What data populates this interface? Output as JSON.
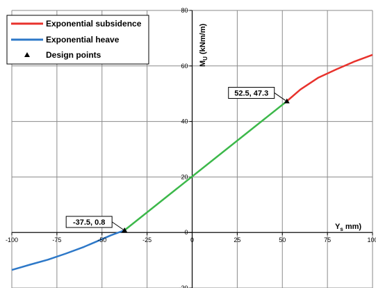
{
  "chart_data": {
    "type": "line",
    "xlim": [
      -100,
      100
    ],
    "ylim": [
      -20,
      80
    ],
    "x_ticks": [
      "-100",
      "-75",
      "-50",
      "-25",
      "0",
      "25",
      "50",
      "75",
      "100"
    ],
    "y_ticks": [
      "-20",
      "0",
      "20",
      "40",
      "60",
      "80"
    ],
    "grid": true,
    "xlabel": "Ys mm)",
    "xlabel_parts": {
      "main": "Y",
      "sub": "s",
      "rest": " mm)"
    },
    "ylabel": "MU (kNm/m)",
    "ylabel_parts": {
      "main": "M",
      "sub": "U",
      "rest": " (kNm/m)"
    },
    "legend_position": "top-left",
    "series": [
      {
        "name": "Exponential subsidence",
        "color": "#e8322c",
        "x": [
          52.5,
          60,
          70,
          80,
          90,
          100
        ],
        "y": [
          47.3,
          51.5,
          55.8,
          58.8,
          61.6,
          64.0
        ]
      },
      {
        "name": "Exponential heave",
        "color": "#2d78c8",
        "x": [
          -100,
          -90,
          -80,
          -70,
          -60,
          -50,
          -45,
          -37.5
        ],
        "y": [
          -13.5,
          -11.6,
          -9.8,
          -7.6,
          -5.2,
          -2.4,
          -1.0,
          0.8
        ]
      },
      {
        "name": "",
        "color": "#3cb84a",
        "x": [
          -37.5,
          52.5
        ],
        "y": [
          0.8,
          47.3
        ]
      }
    ],
    "design_points": {
      "name": "Design points",
      "points": [
        {
          "x": -37.5,
          "y": 0.8,
          "label": "-37.5, 0.8"
        },
        {
          "x": 52.5,
          "y": 47.3,
          "label": "52.5, 47.3"
        }
      ]
    }
  }
}
